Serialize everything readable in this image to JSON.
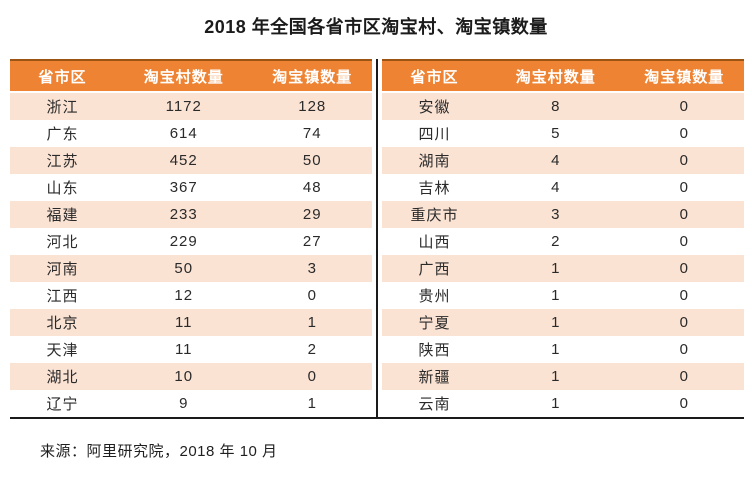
{
  "title": "2018 年全国各省市区淘宝村、淘宝镇数量",
  "source": "来源：阿里研究院，2018 年 10 月",
  "colors": {
    "header_bg": "#EE8433",
    "header_text": "#ffffff",
    "row_alt_bg": "#FBE3D4",
    "row_bg": "#ffffff",
    "divider_line": "#1a1a1a",
    "header_top_edge": "#9c5415"
  },
  "tables": [
    {
      "headers": [
        "省市区",
        "淘宝村数量",
        "淘宝镇数量"
      ],
      "rows": [
        [
          "浙江",
          "1172",
          "128"
        ],
        [
          "广东",
          "614",
          "74"
        ],
        [
          "江苏",
          "452",
          "50"
        ],
        [
          "山东",
          "367",
          "48"
        ],
        [
          "福建",
          "233",
          "29"
        ],
        [
          "河北",
          "229",
          "27"
        ],
        [
          "河南",
          "50",
          "3"
        ],
        [
          "江西",
          "12",
          "0"
        ],
        [
          "北京",
          "11",
          "1"
        ],
        [
          "天津",
          "11",
          "2"
        ],
        [
          "湖北",
          "10",
          "0"
        ],
        [
          "辽宁",
          "9",
          "1"
        ]
      ]
    },
    {
      "headers": [
        "省市区",
        "淘宝村数量",
        "淘宝镇数量"
      ],
      "rows": [
        [
          "安徽",
          "8",
          "0"
        ],
        [
          "四川",
          "5",
          "0"
        ],
        [
          "湖南",
          "4",
          "0"
        ],
        [
          "吉林",
          "4",
          "0"
        ],
        [
          "重庆市",
          "3",
          "0"
        ],
        [
          "山西",
          "2",
          "0"
        ],
        [
          "广西",
          "1",
          "0"
        ],
        [
          "贵州",
          "1",
          "0"
        ],
        [
          "宁夏",
          "1",
          "0"
        ],
        [
          "陕西",
          "1",
          "0"
        ],
        [
          "新疆",
          "1",
          "0"
        ],
        [
          "云南",
          "1",
          "0"
        ]
      ]
    }
  ],
  "chart_data": {
    "type": "table",
    "title": "2018 年全国各省市区淘宝村、淘宝镇数量",
    "columns": [
      "省市区",
      "淘宝村数量",
      "淘宝镇数量"
    ],
    "rows": [
      [
        "浙江",
        1172,
        128
      ],
      [
        "广东",
        614,
        74
      ],
      [
        "江苏",
        452,
        50
      ],
      [
        "山东",
        367,
        48
      ],
      [
        "福建",
        233,
        29
      ],
      [
        "河北",
        229,
        27
      ],
      [
        "河南",
        50,
        3
      ],
      [
        "江西",
        12,
        0
      ],
      [
        "北京",
        11,
        1
      ],
      [
        "天津",
        11,
        2
      ],
      [
        "湖北",
        10,
        0
      ],
      [
        "辽宁",
        9,
        1
      ],
      [
        "安徽",
        8,
        0
      ],
      [
        "四川",
        5,
        0
      ],
      [
        "湖南",
        4,
        0
      ],
      [
        "吉林",
        4,
        0
      ],
      [
        "重庆市",
        3,
        0
      ],
      [
        "山西",
        2,
        0
      ],
      [
        "广西",
        1,
        0
      ],
      [
        "贵州",
        1,
        0
      ],
      [
        "宁夏",
        1,
        0
      ],
      [
        "陕西",
        1,
        0
      ],
      [
        "新疆",
        1,
        0
      ],
      [
        "云南",
        1,
        0
      ]
    ],
    "layout": "two side-by-side tables, rows split 12/12, all columns centered",
    "source": "来源：阿里研究院，2018 年 10 月"
  }
}
